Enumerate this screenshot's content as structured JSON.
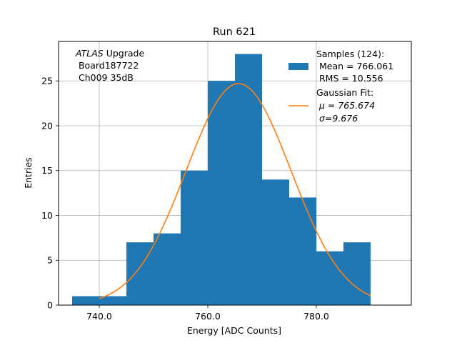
{
  "chart_data": {
    "type": "bar",
    "title": "Run 621",
    "xlabel": "Energy [ADC Counts]",
    "ylabel": "Entries",
    "xlim": [
      732.5,
      797.5
    ],
    "ylim": [
      0,
      29.4
    ],
    "xticks": [
      740,
      760,
      780
    ],
    "xtick_labels": [
      "740.0",
      "760.0",
      "780.0"
    ],
    "yticks": [
      0,
      5,
      10,
      15,
      20,
      25
    ],
    "grid": true,
    "legend_position": "top-right",
    "histogram": {
      "name": "Samples (124):",
      "color": "#1f77b4",
      "bins": [
        {
          "x0": 735,
          "x1": 740,
          "count": 1
        },
        {
          "x0": 740,
          "x1": 745,
          "count": 1
        },
        {
          "x0": 745,
          "x1": 750,
          "count": 7
        },
        {
          "x0": 750,
          "x1": 755,
          "count": 8
        },
        {
          "x0": 755,
          "x1": 760,
          "count": 15
        },
        {
          "x0": 760,
          "x1": 765,
          "count": 25
        },
        {
          "x0": 765,
          "x1": 770,
          "count": 28
        },
        {
          "x0": 770,
          "x1": 775,
          "count": 14
        },
        {
          "x0": 775,
          "x1": 780,
          "count": 12
        },
        {
          "x0": 780,
          "x1": 785,
          "count": 6
        },
        {
          "x0": 785,
          "x1": 790,
          "count": 7
        }
      ]
    },
    "fit": {
      "name": "Gaussian Fit:",
      "color": "#ff7f0e",
      "mu": 765.674,
      "sigma": 9.676,
      "amplitude": 24.7,
      "x_range": [
        740,
        790
      ]
    },
    "legend": {
      "samples_title": "Samples (124):",
      "samples_mean": " Mean = 766.061",
      "samples_rms": " RMS = 10.556",
      "fit_title": "Gaussian Fit:",
      "fit_mu": " μ = 765.674",
      "fit_sigma": " σ=9.676"
    },
    "annotation": {
      "atlas": "ATLAS",
      "upgrade": " Upgrade",
      "board": " Board187722",
      "channel": " Ch009 35dB"
    }
  }
}
